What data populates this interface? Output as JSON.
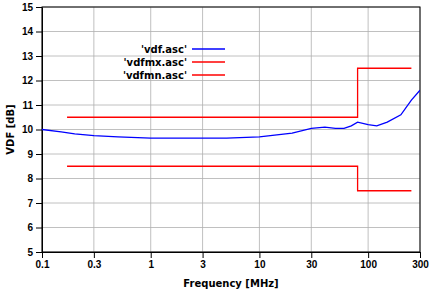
{
  "chart_data": {
    "type": "line",
    "x_label": "Frequency [MHz]",
    "y_label": "VDF [dB]",
    "log": "x",
    "grid": true,
    "legend": "upper left",
    "xlim": [
      0.1,
      300
    ],
    "ylim": [
      5,
      15
    ],
    "xticks": [
      0.1,
      0.3,
      1,
      3,
      10,
      30,
      100,
      300
    ],
    "yticks": [
      5,
      6,
      7,
      8,
      9,
      10,
      11,
      12,
      13,
      14,
      15
    ],
    "series": [
      {
        "name": "'vdf.asc'",
        "color": "#0000ff",
        "x": [
          0.1,
          0.15,
          0.2,
          0.3,
          0.5,
          1,
          2,
          3,
          5,
          10,
          20,
          30,
          40,
          50,
          60,
          70,
          80,
          100,
          120,
          150,
          200,
          250,
          300
        ],
        "values": [
          10.0,
          9.9,
          9.82,
          9.75,
          9.7,
          9.65,
          9.65,
          9.65,
          9.65,
          9.7,
          9.85,
          10.05,
          10.1,
          10.05,
          10.05,
          10.15,
          10.3,
          10.2,
          10.15,
          10.3,
          10.6,
          11.2,
          11.6
        ]
      },
      {
        "name": "'vdfmx.asc'",
        "color": "#ff0000",
        "x": [
          0.17,
          80,
          80,
          250
        ],
        "values": [
          10.5,
          10.5,
          12.5,
          12.5
        ]
      },
      {
        "name": "'vdfmn.asc'",
        "color": "#ff0000",
        "x": [
          0.17,
          80,
          80,
          250
        ],
        "values": [
          8.5,
          8.5,
          7.5,
          7.5
        ]
      }
    ]
  }
}
